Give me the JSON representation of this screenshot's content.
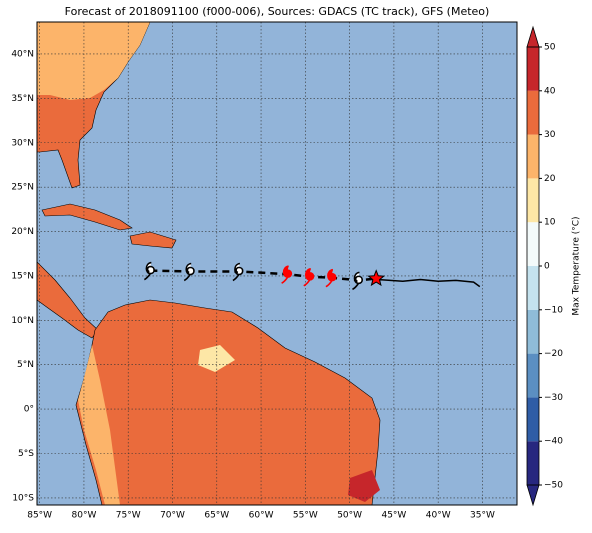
{
  "chart_data": {
    "type": "map",
    "title": "Forecast of 2018091100 (f000-006), Sources: GDACS (TC track), GFS (Meteo)",
    "xlim": [
      -85.3,
      -31.1
    ],
    "ylim": [
      -10.8,
      43.6
    ],
    "xticks": [
      {
        "value": -85,
        "label": "85°W"
      },
      {
        "value": -80,
        "label": "80°W"
      },
      {
        "value": -75,
        "label": "75°W"
      },
      {
        "value": -70,
        "label": "70°W"
      },
      {
        "value": -65,
        "label": "65°W"
      },
      {
        "value": -60,
        "label": "60°W"
      },
      {
        "value": -55,
        "label": "55°W"
      },
      {
        "value": -50,
        "label": "50°W"
      },
      {
        "value": -45,
        "label": "45°W"
      },
      {
        "value": -40,
        "label": "40°W"
      },
      {
        "value": -35,
        "label": "35°W"
      }
    ],
    "yticks": [
      {
        "value": 40,
        "label": "40°N"
      },
      {
        "value": 35,
        "label": "35°N"
      },
      {
        "value": 30,
        "label": "30°N"
      },
      {
        "value": 25,
        "label": "25°N"
      },
      {
        "value": 20,
        "label": "20°N"
      },
      {
        "value": 15,
        "label": "15°N"
      },
      {
        "value": 10,
        "label": "10°N"
      },
      {
        "value": 5,
        "label": "5°N"
      },
      {
        "value": 0,
        "label": "0°"
      },
      {
        "value": -5,
        "label": "5°S"
      },
      {
        "value": -10,
        "label": "10°S"
      }
    ],
    "grid": true,
    "track_points": {
      "lon": [
        -72.5,
        -68,
        -62.5,
        -57,
        -54.5,
        -52,
        -49
      ],
      "lat": [
        15.6,
        15.5,
        15.5,
        15.2,
        14.9,
        14.8,
        14.5
      ],
      "colors": [
        "#000000",
        "#000000",
        "#000000",
        "#ff0000",
        "#ff0000",
        "#ff0000",
        "#000000"
      ]
    },
    "current_position": {
      "lon": -47,
      "lat": 14.7,
      "color": "#ff0000"
    },
    "history": {
      "lon": [
        -47,
        -44,
        -42,
        -40,
        -38,
        -36,
        -35.3
      ],
      "lat": [
        14.6,
        14.4,
        14.6,
        14.4,
        14.5,
        14.3,
        13.8
      ]
    },
    "colorbar": {
      "label": "Max Temperature (°C)",
      "lim": [
        -50,
        50
      ],
      "ticks": [
        {
          "value": -50,
          "label": "−50"
        },
        {
          "value": -40,
          "label": "−40"
        },
        {
          "value": -30,
          "label": "−30"
        },
        {
          "value": -20,
          "label": "−20"
        },
        {
          "value": -10,
          "label": "−10"
        },
        0,
        10,
        20,
        30,
        40,
        50
      ],
      "colors": [
        "#27277f",
        "#2f5da6",
        "#5b8fc2",
        "#8fbcd8",
        "#c4e2ee",
        "#f3fafa",
        "#fde7a6",
        "#fcb46a",
        "#ea6b3c",
        "#c6262b"
      ]
    }
  }
}
